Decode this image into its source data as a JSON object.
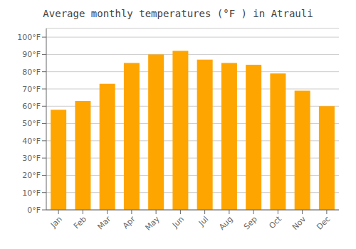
{
  "chart_data": {
    "type": "bar",
    "title": "Average monthly temperatures (°F ) in Atrauli",
    "categories": [
      "Jan",
      "Feb",
      "Mar",
      "Apr",
      "May",
      "Jun",
      "Jul",
      "Aug",
      "Sep",
      "Oct",
      "Nov",
      "Dec"
    ],
    "values": [
      58,
      63,
      73,
      85,
      90,
      92,
      87,
      85,
      84,
      79,
      69,
      60
    ],
    "color": "#FFA500",
    "ylim": [
      0,
      105
    ],
    "yticks": [
      {
        "value": 0,
        "label": "0°F"
      },
      {
        "value": 10,
        "label": "10°F"
      },
      {
        "value": 20,
        "label": "20°F"
      },
      {
        "value": 30,
        "label": "30°F"
      },
      {
        "value": 40,
        "label": "40°F"
      },
      {
        "value": 50,
        "label": "50°F"
      },
      {
        "value": 60,
        "label": "60°F"
      },
      {
        "value": 70,
        "label": "70°F"
      },
      {
        "value": 80,
        "label": "80°F"
      },
      {
        "value": 90,
        "label": "90°F"
      },
      {
        "value": 100,
        "label": "100°F"
      }
    ],
    "grid": true
  }
}
